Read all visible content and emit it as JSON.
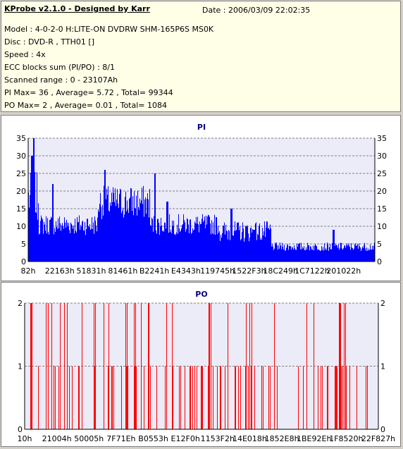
{
  "header": {
    "title": "KProbe v2.1.0 - Designed by Karr",
    "date": "Date : 2006/03/09 22:02:35",
    "lines": [
      "Model : 4-0-2-0 H:LITE-ON DVDRW SHM-165P6S MS0K",
      "Disc : DVD-R , TTH01 []",
      "Speed : 4x",
      "ECC blocks sum (PI/PO) : 8/1",
      "Scanned range : 0 - 23107Ah",
      "PI Max= 36 , Average= 5.72 , Total= 99344",
      "PO Max= 2 , Average= 0.01 , Total= 1084"
    ]
  },
  "colors": {
    "plot_bg": "#ecebf8",
    "pi_bar": "#0000ff",
    "po_bar": "#ff0000",
    "title": "#000080",
    "grid": "#808080"
  },
  "chart_data": [
    {
      "type": "bar",
      "title": "PI",
      "y_ticks": [
        0,
        5,
        10,
        15,
        20,
        25,
        30,
        35
      ],
      "ylim": [
        0,
        35
      ],
      "x_ticks": [
        "82h",
        "22163h",
        "51831h",
        "81461h",
        "B2241h",
        "E4343h",
        "119745h",
        "1522F3h",
        "18C249h",
        "1C7122h",
        "201022h"
      ],
      "grid": "dashed horizontal",
      "max": 36,
      "segments": [
        {
          "from_pct": 0,
          "to_pct": 3,
          "base": 17,
          "spread": 12
        },
        {
          "from_pct": 3,
          "to_pct": 20,
          "base": 10,
          "spread": 5
        },
        {
          "from_pct": 20,
          "to_pct": 35,
          "base": 16,
          "spread": 8
        },
        {
          "from_pct": 35,
          "to_pct": 55,
          "base": 10,
          "spread": 5
        },
        {
          "from_pct": 55,
          "to_pct": 70,
          "base": 8,
          "spread": 5
        },
        {
          "from_pct": 70,
          "to_pct": 100,
          "base": 4,
          "spread": 2
        }
      ],
      "peaks": [
        {
          "pos_pct": 1.5,
          "value": 36
        },
        {
          "pos_pct": 1.0,
          "value": 30
        },
        {
          "pos_pct": 7.0,
          "value": 22
        },
        {
          "pos_pct": 22.0,
          "value": 26
        },
        {
          "pos_pct": 36.5,
          "value": 25
        },
        {
          "pos_pct": 40.0,
          "value": 17
        },
        {
          "pos_pct": 58.5,
          "value": 15
        },
        {
          "pos_pct": 65.0,
          "value": 9
        },
        {
          "pos_pct": 88.0,
          "value": 9
        }
      ]
    },
    {
      "type": "bar",
      "title": "PO",
      "y_ticks": [
        0,
        1,
        2
      ],
      "ylim": [
        0,
        2
      ],
      "x_ticks": [
        "10h",
        "21004h",
        "50005h",
        "7F71Eh",
        "B0553h",
        "E12F0h",
        "1153F2h",
        "14E018h",
        "1852E8h",
        "1BE92Eh",
        "1F8520h",
        "22F827h"
      ],
      "grid": "dashed horizontal",
      "max": 2
    }
  ]
}
